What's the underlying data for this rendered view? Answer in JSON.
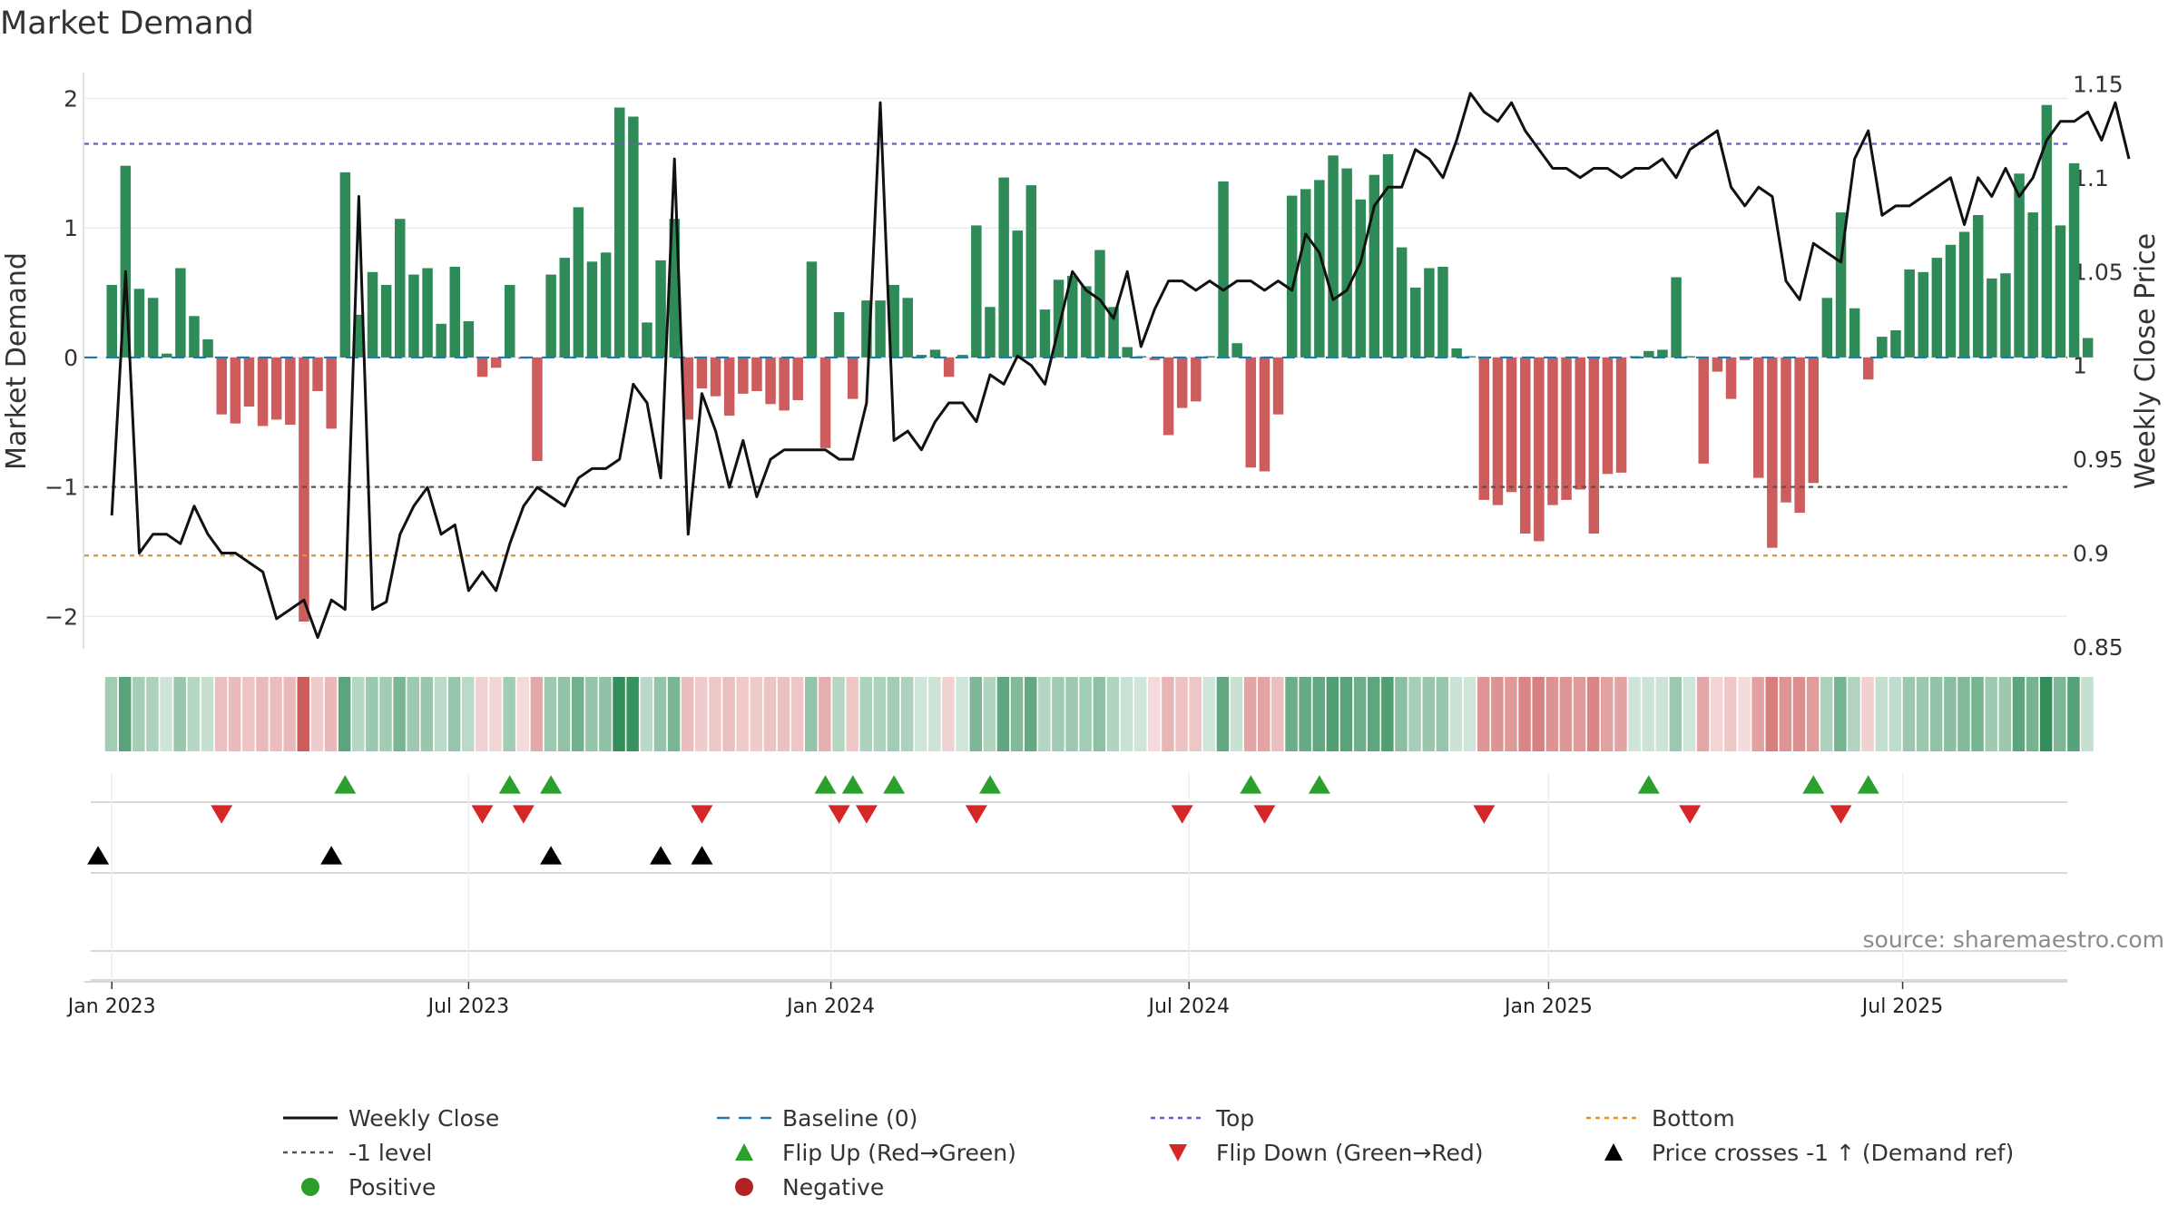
{
  "chart_data": {
    "type": "bar",
    "title": "Market Demand",
    "source_label": "source: sharemaestro.com",
    "ylabel_left": "Market Demand",
    "ylabel_right": "Weekly Close Price",
    "ylim_left": [
      -2.25,
      2.2
    ],
    "ylim_right": [
      0.849,
      1.156
    ],
    "yticks_left": [
      {
        "v": 2,
        "label": "2"
      },
      {
        "v": 1,
        "label": "1"
      },
      {
        "v": 0,
        "label": "0"
      },
      {
        "v": -1,
        "label": "−1"
      },
      {
        "v": -2,
        "label": "−2"
      }
    ],
    "yticks_right": [
      {
        "v": 1.15,
        "label": "1.15"
      },
      {
        "v": 1.1,
        "label": "1.1"
      },
      {
        "v": 1.05,
        "label": "1.05"
      },
      {
        "v": 1.0,
        "label": "1"
      },
      {
        "v": 0.95,
        "label": "0.95"
      },
      {
        "v": 0.9,
        "label": "0.9"
      },
      {
        "v": 0.85,
        "label": "0.85"
      }
    ],
    "xrange_weeks": [
      -2,
      142.5
    ],
    "xticks": [
      {
        "w": 0,
        "label": "Jan 2023"
      },
      {
        "w": 26,
        "label": "Jul 2023"
      },
      {
        "w": 52.4,
        "label": "Jan 2024"
      },
      {
        "w": 78.5,
        "label": "Jul 2024"
      },
      {
        "w": 104.7,
        "label": "Jan 2025"
      },
      {
        "w": 130.5,
        "label": "Jul 2025"
      }
    ],
    "levels": {
      "top": 1.65,
      "bottom": -1.53,
      "minus_one": -1,
      "baseline": 0
    },
    "demand": [
      0.56,
      1.48,
      0.53,
      0.46,
      0.03,
      0.69,
      0.32,
      0.14,
      -0.44,
      -0.51,
      -0.38,
      -0.53,
      -0.48,
      -0.52,
      -2.04,
      -0.26,
      -0.55,
      1.43,
      0.33,
      0.66,
      0.56,
      1.07,
      0.64,
      0.69,
      0.26,
      0.7,
      0.28,
      -0.15,
      -0.08,
      0.56,
      -0.01,
      -0.8,
      0.64,
      0.77,
      1.16,
      0.74,
      0.81,
      1.93,
      1.86,
      0.27,
      0.75,
      1.07,
      -0.48,
      -0.24,
      -0.3,
      -0.45,
      -0.28,
      -0.26,
      -0.36,
      -0.41,
      -0.33,
      0.74,
      -0.7,
      0.35,
      -0.32,
      0.44,
      0.44,
      0.56,
      0.46,
      0.02,
      0.06,
      -0.15,
      0.02,
      1.02,
      0.39,
      1.39,
      0.98,
      1.33,
      0.37,
      0.6,
      0.63,
      0.55,
      0.83,
      0.39,
      0.08,
      0.01,
      -0.02,
      -0.6,
      -0.39,
      -0.34,
      0.01,
      1.36,
      0.11,
      -0.85,
      -0.88,
      -0.44,
      1.25,
      1.3,
      1.37,
      1.56,
      1.46,
      1.22,
      1.41,
      1.57,
      0.85,
      0.54,
      0.69,
      0.7,
      0.07,
      0.01,
      -1.1,
      -1.14,
      -1.04,
      -1.36,
      -1.42,
      -1.14,
      -1.1,
      -1.02,
      -1.36,
      -0.9,
      -0.89,
      0.01,
      0.05,
      0.06,
      0.62,
      0.01,
      -0.82,
      -0.11,
      -0.32,
      -0.02,
      -0.93,
      -1.47,
      -1.12,
      -1.2,
      -0.97,
      0.46,
      1.12,
      0.38,
      -0.17,
      0.16,
      0.21,
      0.68,
      0.66,
      0.77,
      0.87,
      0.97,
      1.1,
      0.61,
      0.65,
      1.42,
      1.12,
      1.95,
      1.02,
      1.5,
      0.15
    ],
    "close_weekly": [
      0.92,
      1.05,
      0.9,
      0.91,
      0.91,
      0.905,
      0.925,
      0.91,
      0.9,
      0.9,
      0.895,
      0.89,
      0.865,
      0.87,
      0.875,
      0.855,
      0.875,
      0.87,
      1.09,
      0.87,
      0.874,
      0.91,
      0.925,
      0.935,
      0.91,
      0.915,
      0.88,
      0.89,
      0.88,
      0.905,
      0.925,
      0.935,
      0.93,
      0.925,
      0.94,
      0.945,
      0.945,
      0.95,
      0.99,
      0.98,
      0.94,
      1.11,
      0.91,
      0.985,
      0.965,
      0.935,
      0.96,
      0.93,
      0.95,
      0.955,
      0.955,
      0.955,
      0.955,
      0.95,
      0.95,
      0.98,
      1.14,
      0.96,
      0.965,
      0.955,
      0.97,
      0.98,
      0.98,
      0.97,
      0.995,
      0.99,
      1.005,
      1.0,
      0.99,
      1.02,
      1.05,
      1.04,
      1.035,
      1.025,
      1.05,
      1.01,
      1.03,
      1.045,
      1.045,
      1.04,
      1.045,
      1.04,
      1.045,
      1.045,
      1.04,
      1.045,
      1.04,
      1.07,
      1.06,
      1.035,
      1.04,
      1.055,
      1.085,
      1.095,
      1.095,
      1.115,
      1.11,
      1.1,
      1.12,
      1.145,
      1.135,
      1.13,
      1.14,
      1.125,
      1.115,
      1.105,
      1.105,
      1.1,
      1.105,
      1.105,
      1.1,
      1.105,
      1.105,
      1.11,
      1.1,
      1.115,
      1.12,
      1.125,
      1.095,
      1.085,
      1.095,
      1.09,
      1.045,
      1.035,
      1.065,
      1.06,
      1.055,
      1.11,
      1.125,
      1.08,
      1.085,
      1.085,
      1.09,
      1.095,
      1.1,
      1.075,
      1.1,
      1.09,
      1.105,
      1.09,
      1.1,
      1.12,
      1.13,
      1.13,
      1.135,
      1.12,
      1.14,
      1.11
    ],
    "flip_up_weeks": [
      17,
      29,
      32,
      52,
      54,
      57,
      64,
      83,
      88,
      112,
      124,
      128
    ],
    "flip_down_weeks": [
      8,
      27,
      30,
      43,
      53,
      55,
      63,
      78,
      84,
      100,
      115,
      126
    ],
    "price_crosses_weeks": [
      -1,
      16,
      32,
      40,
      43
    ],
    "legend": [
      {
        "key": "close",
        "label": "Weekly Close",
        "color": "#111111"
      },
      {
        "key": "baseline",
        "label": "Baseline (0)",
        "color": "#1f77b4"
      },
      {
        "key": "top",
        "label": "Top",
        "color": "#6a5acd"
      },
      {
        "key": "bottom",
        "label": "Bottom",
        "color": "#e0922b"
      },
      {
        "key": "minus1",
        "label": "-1 level",
        "color": "#555555"
      },
      {
        "key": "flipup",
        "label": "Flip Up (Red→Green)",
        "color": "#2ca02c"
      },
      {
        "key": "flipdown",
        "label": "Flip Down (Green→Red)",
        "color": "#d62728"
      },
      {
        "key": "cross",
        "label": "Price crosses -1 ↑ (Demand ref)",
        "color": "#000000"
      },
      {
        "key": "positive",
        "label": "Positive",
        "color": "#2a9d2a"
      },
      {
        "key": "negative",
        "label": "Negative",
        "color": "#b22222"
      }
    ],
    "colors": {
      "positive_bar": "#2e8b57",
      "negative_bar": "#cd5c5c"
    }
  }
}
